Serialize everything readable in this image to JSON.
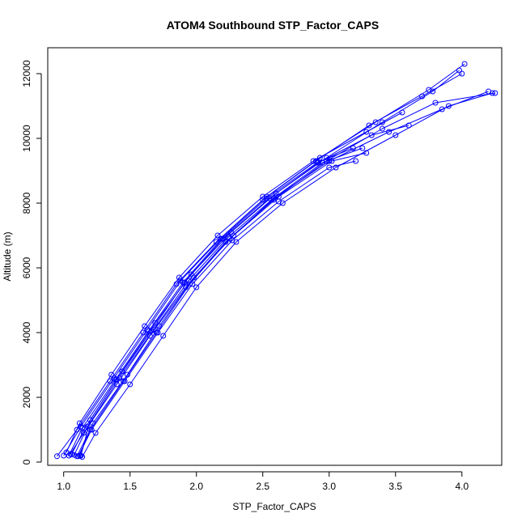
{
  "chart_data": {
    "type": "line",
    "title": "ATOM4 Southbound STP_Factor_CAPS",
    "xlabel": "STP_Factor_CAPS",
    "ylabel": "Altitude (m)",
    "xlim": [
      0.88,
      4.3
    ],
    "ylim": [
      -100,
      12800
    ],
    "x_ticks": [
      1.0,
      1.5,
      2.0,
      2.5,
      3.0,
      3.5,
      4.0
    ],
    "x_tick_labels": [
      "1.0",
      "1.5",
      "2.0",
      "2.5",
      "3.0",
      "3.5",
      "4.0"
    ],
    "y_ticks": [
      0,
      2000,
      4000,
      6000,
      8000,
      10000,
      12000
    ],
    "y_tick_labels": [
      "0",
      "2000",
      "4000",
      "6000",
      "8000",
      "10000",
      "12000"
    ],
    "series_color": "#0000ff",
    "grid": false,
    "series": [
      {
        "points": [
          [
            0.95,
            180
          ],
          [
            1.1,
            1000
          ],
          [
            1.35,
            2500
          ],
          [
            1.6,
            4000
          ],
          [
            1.85,
            5500
          ],
          [
            2.15,
            6800
          ],
          [
            2.5,
            8100
          ],
          [
            2.9,
            9300
          ],
          [
            3.3,
            10400
          ],
          [
            3.7,
            11300
          ],
          [
            4.0,
            12000
          ]
        ]
      },
      {
        "points": [
          [
            1.0,
            200
          ],
          [
            1.13,
            1100
          ],
          [
            1.38,
            2600
          ],
          [
            1.63,
            4100
          ],
          [
            1.88,
            5600
          ],
          [
            2.18,
            6900
          ],
          [
            2.53,
            8200
          ],
          [
            2.93,
            9400
          ],
          [
            3.35,
            10500
          ],
          [
            3.75,
            11500
          ],
          [
            4.02,
            12300
          ]
        ]
      },
      {
        "points": [
          [
            1.05,
            250
          ],
          [
            1.15,
            900
          ],
          [
            1.4,
            2400
          ],
          [
            1.65,
            3900
          ],
          [
            1.92,
            5400
          ],
          [
            2.22,
            6800
          ],
          [
            2.58,
            8100
          ],
          [
            2.98,
            9300
          ],
          [
            3.4,
            10300
          ],
          [
            3.8,
            11100
          ],
          [
            4.25,
            11400
          ]
        ]
      },
      {
        "points": [
          [
            1.1,
            180
          ],
          [
            1.2,
            1000
          ],
          [
            1.45,
            2500
          ],
          [
            1.7,
            4000
          ],
          [
            1.95,
            5500
          ],
          [
            2.25,
            6900
          ],
          [
            2.6,
            8200
          ],
          [
            3.0,
            9300
          ],
          [
            3.45,
            10200
          ],
          [
            3.85,
            10900
          ],
          [
            4.2,
            11450
          ]
        ]
      },
      {
        "points": [
          [
            1.12,
            200
          ],
          [
            1.22,
            1200
          ],
          [
            1.48,
            2700
          ],
          [
            1.72,
            4200
          ],
          [
            1.98,
            5700
          ],
          [
            2.28,
            7000
          ],
          [
            2.62,
            8200
          ],
          [
            3.02,
            9300
          ],
          [
            3.28,
            9550
          ]
        ]
      },
      {
        "points": [
          [
            1.08,
            220
          ],
          [
            1.18,
            1100
          ],
          [
            1.42,
            2600
          ],
          [
            1.68,
            4100
          ],
          [
            1.94,
            5600
          ],
          [
            2.24,
            6950
          ],
          [
            2.58,
            8150
          ],
          [
            2.95,
            9250
          ],
          [
            3.25,
            9700
          ]
        ]
      },
      {
        "points": [
          [
            1.02,
            300
          ],
          [
            1.12,
            1200
          ],
          [
            1.36,
            2700
          ],
          [
            1.61,
            4200
          ],
          [
            1.87,
            5700
          ],
          [
            2.16,
            7000
          ],
          [
            2.5,
            8200
          ],
          [
            2.88,
            9300
          ],
          [
            3.28,
            10200
          ],
          [
            3.55,
            10800
          ]
        ]
      },
      {
        "points": [
          [
            1.06,
            240
          ],
          [
            1.16,
            1050
          ],
          [
            1.4,
            2550
          ],
          [
            1.66,
            4050
          ],
          [
            1.91,
            5550
          ],
          [
            2.2,
            6900
          ],
          [
            2.55,
            8150
          ],
          [
            2.92,
            9250
          ],
          [
            3.32,
            10100
          ],
          [
            3.6,
            10400
          ]
        ]
      },
      {
        "points": [
          [
            1.14,
            160
          ],
          [
            1.24,
            900
          ],
          [
            1.5,
            2400
          ],
          [
            1.75,
            3900
          ],
          [
            2.0,
            5400
          ],
          [
            2.3,
            6800
          ],
          [
            2.65,
            8000
          ],
          [
            3.05,
            9100
          ],
          [
            3.5,
            10100
          ],
          [
            3.9,
            11000
          ],
          [
            4.23,
            11400
          ]
        ]
      },
      {
        "points": [
          [
            1.13,
            200
          ],
          [
            1.2,
            1300
          ],
          [
            1.44,
            2800
          ],
          [
            1.69,
            4300
          ],
          [
            1.96,
            5800
          ],
          [
            2.26,
            7100
          ],
          [
            2.6,
            8300
          ],
          [
            2.98,
            9400
          ],
          [
            3.4,
            10500
          ],
          [
            3.78,
            11450
          ],
          [
            3.98,
            12100
          ]
        ]
      },
      {
        "points": [
          [
            1.04,
            200
          ],
          [
            1.14,
            1050
          ],
          [
            1.39,
            2550
          ],
          [
            1.64,
            4050
          ],
          [
            1.9,
            5550
          ],
          [
            2.19,
            6900
          ],
          [
            2.53,
            8150
          ],
          [
            2.91,
            9250
          ],
          [
            3.18,
            9700
          ]
        ]
      },
      {
        "points": [
          [
            1.11,
            180
          ],
          [
            1.21,
            1000
          ],
          [
            1.46,
            2500
          ],
          [
            1.71,
            4000
          ],
          [
            1.97,
            5500
          ],
          [
            2.27,
            6850
          ],
          [
            2.62,
            8050
          ],
          [
            3.0,
            9100
          ],
          [
            3.2,
            9300
          ]
        ]
      }
    ]
  }
}
